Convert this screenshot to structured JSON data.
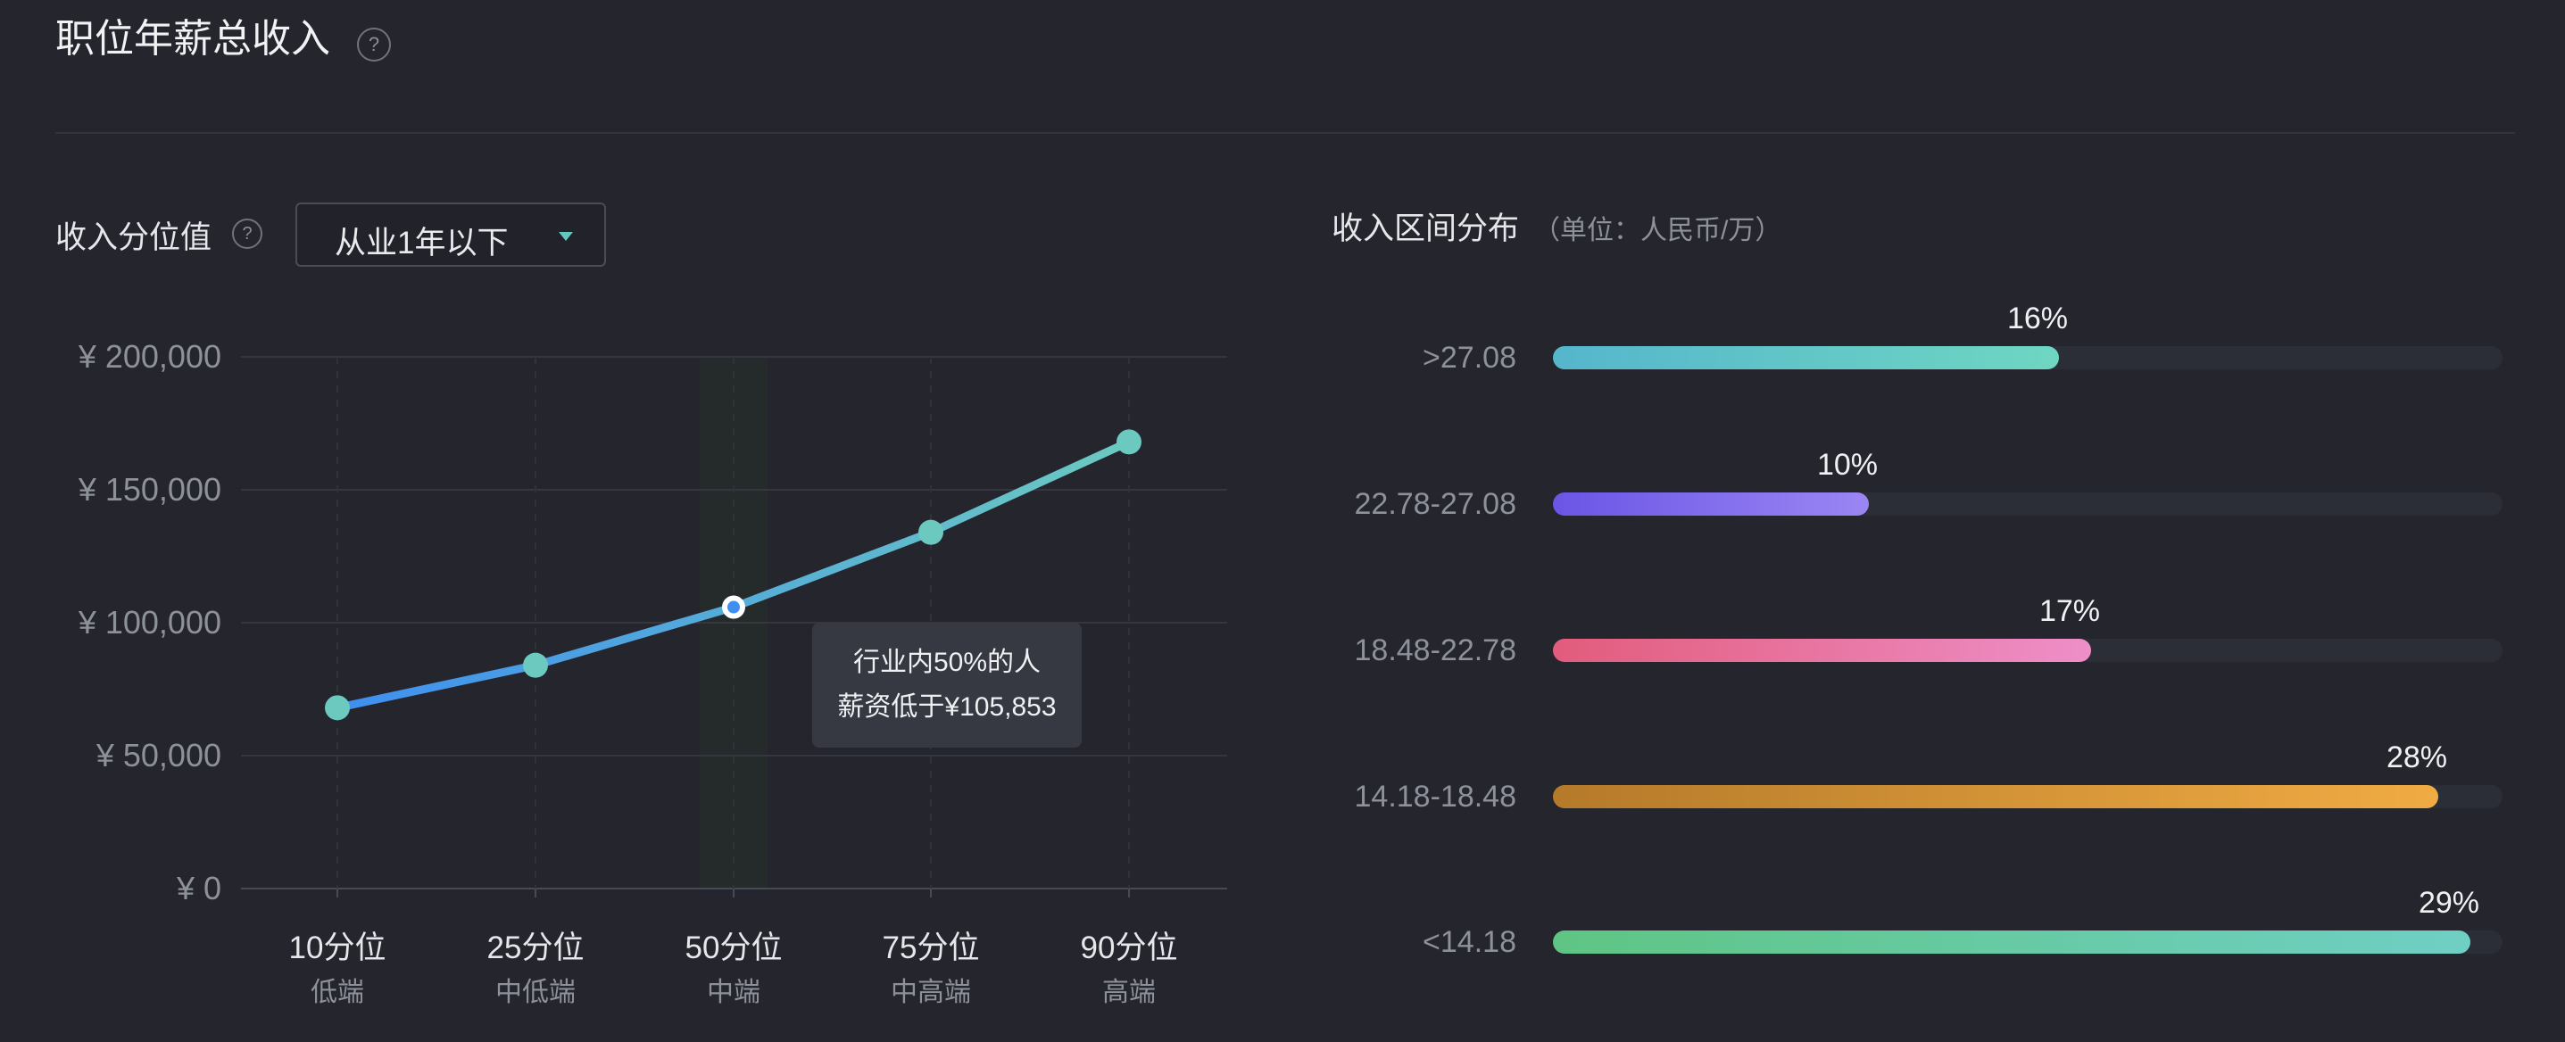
{
  "header": {
    "title": "职位年薪总收入",
    "help_glyph": "?"
  },
  "percentile_section": {
    "label": "收入分位值",
    "help_glyph": "?",
    "select": {
      "value": "从业1年以下",
      "caret_icon": "caret-down-icon"
    }
  },
  "tooltip": {
    "line1": "行业内50%的人",
    "line2": "薪资低于¥105,853"
  },
  "distribution": {
    "title": "收入区间分布",
    "unit": "（单位：人民币/万）"
  },
  "colors": {
    "line_start": "#3f8ff0",
    "line_end": "#6cc9c0",
    "point": "#6cc9c0",
    "highlight_band": "#252b2a",
    "grid": "#343640",
    "axis_text": "#8d919a"
  },
  "chart_data": [
    {
      "type": "line",
      "categories": [
        "10分位",
        "25分位",
        "50分位",
        "75分位",
        "90分位"
      ],
      "sublabels": [
        "低端",
        "中低端",
        "中端",
        "中高端",
        "高端"
      ],
      "values": [
        68000,
        84000,
        105853,
        134000,
        168000
      ],
      "ylim": [
        0,
        200000
      ],
      "yticks": [
        0,
        50000,
        100000,
        150000,
        200000
      ],
      "ytick_labels": [
        "¥ 0",
        "¥ 50,000",
        "¥ 100,000",
        "¥ 150,000",
        "¥ 200,000"
      ],
      "highlight_index": 2,
      "grid": true
    },
    {
      "type": "bar",
      "orientation": "horizontal",
      "categories": [
        ">27.08",
        "22.78-27.08",
        "18.48-22.78",
        "14.18-18.48",
        "<14.18"
      ],
      "values": [
        16,
        10,
        17,
        28,
        29
      ],
      "value_labels": [
        "16%",
        "10%",
        "17%",
        "28%",
        "29%"
      ],
      "xlim": [
        0,
        30
      ],
      "colors": [
        [
          "#55b6cc",
          "#6fd6c2"
        ],
        [
          "#6a55e6",
          "#9b86f3"
        ],
        [
          "#e25c7c",
          "#ee8fc8"
        ],
        [
          "#b57a2a",
          "#f0ab43"
        ],
        [
          "#5ec584",
          "#6fcfc4"
        ]
      ]
    }
  ]
}
